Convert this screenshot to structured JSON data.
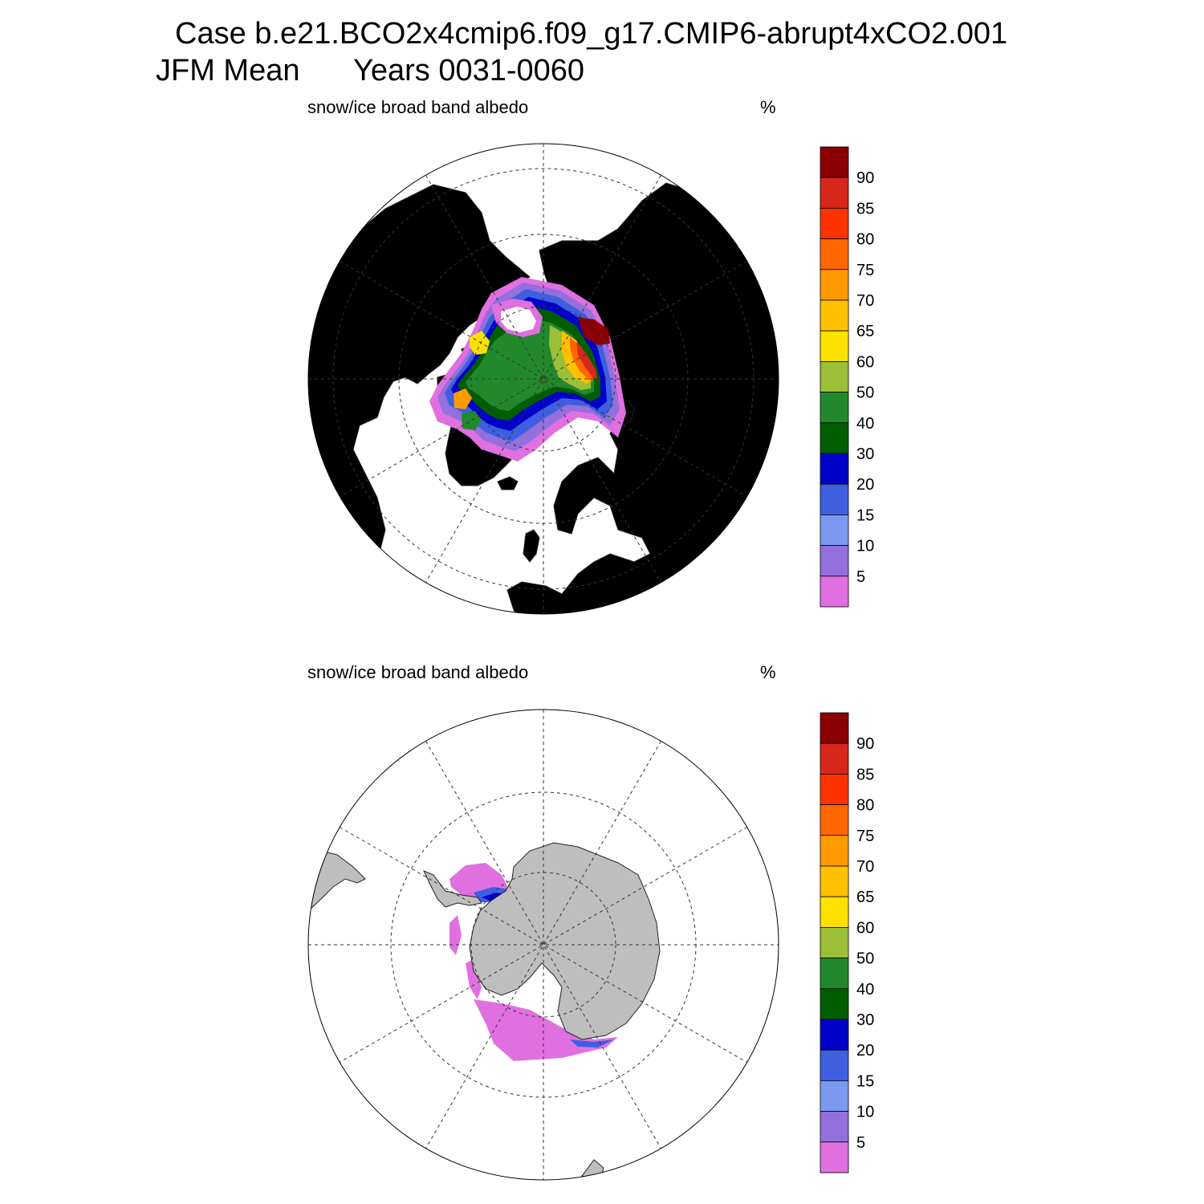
{
  "header": {
    "case_line": "Case b.e21.BCO2x4cmip6.f09_g17.CMIP6-abrupt4xCO2.001",
    "season": "JFM Mean",
    "years": "Years 0031-0060"
  },
  "colorbar": {
    "tick_labels": [
      "90",
      "85",
      "80",
      "75",
      "70",
      "65",
      "60",
      "50",
      "40",
      "30",
      "20",
      "15",
      "10",
      "5"
    ],
    "colors": [
      "#8b0000",
      "#d7261c",
      "#ff3300",
      "#ff6600",
      "#ff9900",
      "#ffc000",
      "#ffe100",
      "#9bbf36",
      "#22882c",
      "#005e00",
      "#0000c8",
      "#3d5fe0",
      "#7b9af0",
      "#9370db",
      "#e070e0"
    ]
  },
  "colors": {
    "land": "#bebebe",
    "ocean": "#ffffff",
    "grid": "#333333"
  },
  "panels": [
    {
      "id": "north",
      "variable": "snow/ice broad band albedo",
      "units": "%",
      "hemisphere": "Northern Hemisphere polar stereographic"
    },
    {
      "id": "south",
      "variable": "snow/ice broad band albedo",
      "units": "%",
      "hemisphere": "Southern Hemisphere polar stereographic"
    }
  ]
}
